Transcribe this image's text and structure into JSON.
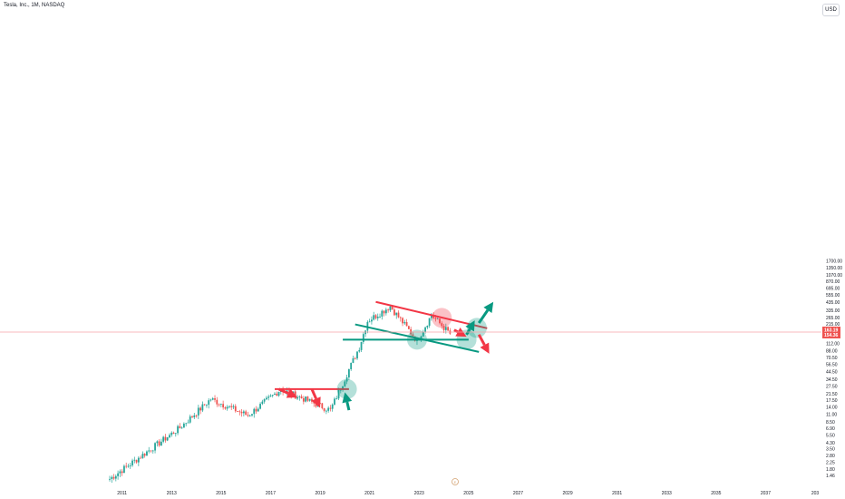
{
  "header": {
    "symbol_title": "Tesla, Inc., 1M, NASDAQ",
    "currency_label": "USD"
  },
  "colors": {
    "up": "#26a69a",
    "down": "#ef5350",
    "trendline_red": "#f23645",
    "trendline_green": "#089981",
    "price_line": "#f7a1a6",
    "axis_text": "#131722"
  },
  "chart_data": {
    "type": "candlestick",
    "scale": "log",
    "interval": "1M",
    "y_tick_labels": [
      "1.46",
      "1.80",
      "2.25",
      "2.80",
      "3.50",
      "4.30",
      "5.50",
      "6.90",
      "8.50",
      "11.00",
      "14.00",
      "17.50",
      "21.50",
      "27.50",
      "34.50",
      "44.50",
      "56.50",
      "70.50",
      "88.00",
      "112.00",
      "215.00",
      "265.00",
      "335.00",
      "435.00",
      "555.00",
      "695.00",
      "870.00",
      "1070.00",
      "1350.00",
      "1700.00"
    ],
    "x_tick_labels": [
      "2011",
      "2013",
      "2015",
      "2017",
      "2019",
      "2021",
      "2023",
      "2025",
      "2027",
      "2029",
      "2031",
      "2033",
      "2035",
      "2037",
      "203"
    ],
    "last_price": "163.19",
    "last_price_sub": "154.36",
    "event_marker": "E",
    "key_points": [
      {
        "date": "2010-07",
        "price": 1.3
      },
      {
        "date": "2013-05",
        "price": 7.0
      },
      {
        "date": "2014-08",
        "price": 18.0
      },
      {
        "date": "2016-02",
        "price": 10.5
      },
      {
        "date": "2017-06",
        "price": 25.0
      },
      {
        "date": "2019-06",
        "price": 12.5
      },
      {
        "date": "2020-08",
        "price": 100.0
      },
      {
        "date": "2020-12",
        "price": 235.0
      },
      {
        "date": "2021-11",
        "price": 380.0
      },
      {
        "date": "2022-12",
        "price": 123.0
      },
      {
        "date": "2023-07",
        "price": 285.0
      },
      {
        "date": "2024-04",
        "price": 155.0
      }
    ],
    "drawings": [
      {
        "kind": "trendline",
        "color": "red",
        "from": {
          "date": "2017-03",
          "price": 25.0
        },
        "to": {
          "date": "2020-03",
          "price": 25.0
        }
      },
      {
        "kind": "trendline",
        "color": "red",
        "from": {
          "date": "2021-04",
          "price": 440.0
        },
        "to": {
          "date": "2025-10",
          "price": 185.0
        }
      },
      {
        "kind": "trendline",
        "color": "green",
        "from": {
          "date": "2020-06",
          "price": 210.0
        },
        "to": {
          "date": "2025-06",
          "price": 85.0
        }
      },
      {
        "kind": "trendline",
        "color": "green",
        "from": {
          "date": "2019-12",
          "price": 127.0
        },
        "to": {
          "date": "2025-01",
          "price": 127.0
        }
      },
      {
        "kind": "circle",
        "color": "green",
        "at": {
          "date": "2020-02",
          "price": 25.0
        }
      },
      {
        "kind": "circle",
        "color": "green",
        "at": {
          "date": "2022-12",
          "price": 127.0
        }
      },
      {
        "kind": "circle",
        "color": "green",
        "at": {
          "date": "2024-12",
          "price": 127.0
        }
      },
      {
        "kind": "circle",
        "color": "green",
        "at": {
          "date": "2025-05",
          "price": 187.0
        }
      },
      {
        "kind": "circle",
        "color": "red",
        "at": {
          "date": "2023-12",
          "price": 260.0
        }
      },
      {
        "kind": "arrow",
        "color": "red",
        "from": {
          "date": "2017-05",
          "price": 25.0
        },
        "to": {
          "date": "2018-02",
          "price": 19.0
        }
      },
      {
        "kind": "arrow",
        "color": "red",
        "from": {
          "date": "2018-09",
          "price": 25.0
        },
        "to": {
          "date": "2019-01",
          "price": 13.5
        }
      },
      {
        "kind": "arrow",
        "color": "green",
        "from": {
          "date": "2020-03",
          "price": 12.5
        },
        "to": {
          "date": "2020-01",
          "price": 22.5
        }
      },
      {
        "kind": "arrow",
        "color": "red",
        "from": {
          "date": "2024-06",
          "price": 175.0
        },
        "to": {
          "date": "2024-12",
          "price": 140.0
        }
      },
      {
        "kind": "arrow",
        "color": "green",
        "from": {
          "date": "2024-12",
          "price": 150.0
        },
        "to": {
          "date": "2025-04",
          "price": 240.0
        }
      },
      {
        "kind": "arrow",
        "color": "green",
        "from": {
          "date": "2025-06",
          "price": 220.0
        },
        "to": {
          "date": "2026-01",
          "price": 440.0
        }
      },
      {
        "kind": "arrow",
        "color": "red",
        "from": {
          "date": "2025-06",
          "price": 150.0
        },
        "to": {
          "date": "2025-11",
          "price": 80.0
        }
      }
    ]
  }
}
